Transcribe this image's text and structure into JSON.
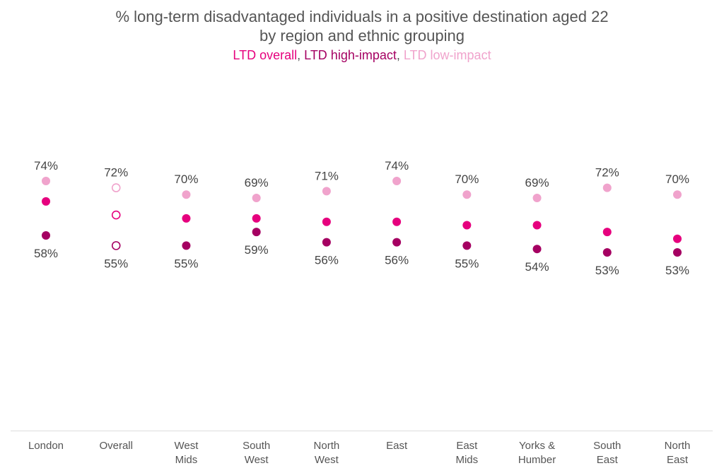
{
  "title_line1": "% long-term disadvantaged individuals in a positive destination aged 22",
  "title_line2": "by region and ethnic grouping",
  "legend": [
    {
      "label": "LTD overall",
      "color": "#e6007e"
    },
    {
      "label": "LTD high-impact",
      "color": "#a50062"
    },
    {
      "label": "LTD low-impact",
      "color": "#f0a3cc"
    }
  ],
  "chart_data": {
    "type": "scatter",
    "categories": [
      [
        "London"
      ],
      [
        "Overall"
      ],
      [
        "West",
        "Mids"
      ],
      [
        "South",
        "West"
      ],
      [
        "North",
        "West"
      ],
      [
        "East"
      ],
      [
        "East",
        "Mids"
      ],
      [
        "Yorks &",
        "Humber"
      ],
      [
        "South",
        "East"
      ],
      [
        "North",
        "East"
      ]
    ],
    "series": [
      {
        "name": "LTD low-impact",
        "color": "#f0a3cc",
        "values": [
          74,
          72,
          70,
          69,
          71,
          74,
          70,
          69,
          72,
          70
        ]
      },
      {
        "name": "LTD overall",
        "color": "#e6007e",
        "values": [
          68,
          64,
          63,
          63,
          62,
          62,
          61,
          61,
          59,
          57
        ]
      },
      {
        "name": "LTD high-impact",
        "color": "#a50062",
        "values": [
          58,
          55,
          55,
          59,
          56,
          56,
          55,
          54,
          53,
          53
        ]
      }
    ],
    "hollow_category": "Overall",
    "labeled_series_top": "LTD low-impact",
    "labeled_series_bottom": "LTD high-impact",
    "top_labels": [
      "74%",
      "72%",
      "70%",
      "69%",
      "71%",
      "74%",
      "70%",
      "69%",
      "72%",
      "70%"
    ],
    "bottom_labels": [
      "58%",
      "55%",
      "55%",
      "59%",
      "56%",
      "56%",
      "55%",
      "54%",
      "53%",
      "53%"
    ],
    "unit": "%"
  }
}
